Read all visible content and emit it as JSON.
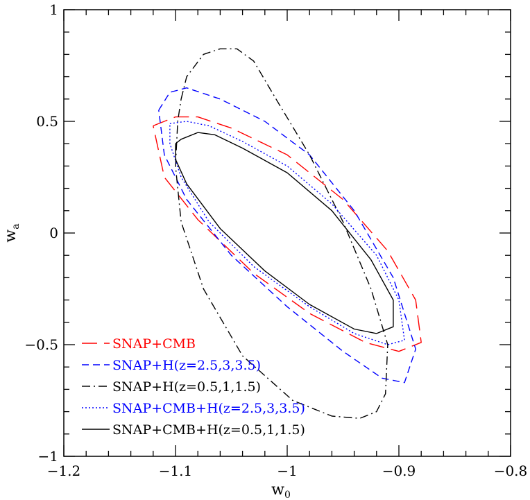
{
  "chart_data": {
    "type": "line",
    "title": "",
    "xlabel": "w",
    "xlabel_sub": "0",
    "ylabel": "w",
    "ylabel_sub": "a",
    "xlim": [
      -1.2,
      -0.8
    ],
    "ylim": [
      -1,
      1
    ],
    "x_major_ticks": [
      -1.2,
      -1.1,
      -1.0,
      -0.9,
      -0.8
    ],
    "x_tick_labels": [
      "−1.2",
      "−1.1",
      "−1",
      "−0.9",
      "−0.8"
    ],
    "y_major_ticks": [
      -1,
      -0.5,
      0,
      0.5,
      1
    ],
    "y_tick_labels": [
      "−1",
      "−0.5",
      "0",
      "0.5",
      "1"
    ],
    "x_minor_step": 0.02,
    "y_minor_step": 0.1,
    "grid": false,
    "legend_position": "bottom-left",
    "series": [
      {
        "name": "SNAP+CMB",
        "color": "#ff0000",
        "dash": "long-dash",
        "points": [
          [
            -1.12,
            0.48
          ],
          [
            -1.1,
            0.52
          ],
          [
            -1.08,
            0.52
          ],
          [
            -1.05,
            0.47
          ],
          [
            -1.0,
            0.35
          ],
          [
            -0.95,
            0.15
          ],
          [
            -0.91,
            -0.08
          ],
          [
            -0.885,
            -0.3
          ],
          [
            -0.88,
            -0.49
          ],
          [
            -0.9,
            -0.53
          ],
          [
            -0.93,
            -0.49
          ],
          [
            -0.98,
            -0.36
          ],
          [
            -1.03,
            -0.18
          ],
          [
            -1.08,
            0.06
          ],
          [
            -1.11,
            0.25
          ],
          [
            -1.12,
            0.48
          ]
        ]
      },
      {
        "name": "SNAP+H(z=2.5,3,3.5)",
        "color": "#0000ff",
        "dash": "short-dash",
        "points": [
          [
            -1.115,
            0.55
          ],
          [
            -1.105,
            0.63
          ],
          [
            -1.09,
            0.65
          ],
          [
            -1.06,
            0.6
          ],
          [
            -1.02,
            0.5
          ],
          [
            -0.98,
            0.35
          ],
          [
            -0.94,
            0.1
          ],
          [
            -0.905,
            -0.2
          ],
          [
            -0.885,
            -0.52
          ],
          [
            -0.895,
            -0.67
          ],
          [
            -0.915,
            -0.65
          ],
          [
            -0.95,
            -0.53
          ],
          [
            -1.0,
            -0.33
          ],
          [
            -1.05,
            -0.1
          ],
          [
            -1.09,
            0.15
          ],
          [
            -1.11,
            0.35
          ],
          [
            -1.115,
            0.55
          ]
        ]
      },
      {
        "name": "SNAP+H(z=0.5,1,1.5)",
        "color": "#000000",
        "dash": "dash-dot",
        "points": [
          [
            -1.095,
            0.6
          ],
          [
            -1.09,
            0.7
          ],
          [
            -1.075,
            0.8
          ],
          [
            -1.06,
            0.825
          ],
          [
            -1.045,
            0.825
          ],
          [
            -1.03,
            0.77
          ],
          [
            -1.01,
            0.6
          ],
          [
            -0.98,
            0.35
          ],
          [
            -0.95,
            0.05
          ],
          [
            -0.925,
            -0.25
          ],
          [
            -0.91,
            -0.5
          ],
          [
            -0.912,
            -0.72
          ],
          [
            -0.92,
            -0.8
          ],
          [
            -0.935,
            -0.83
          ],
          [
            -0.96,
            -0.82
          ],
          [
            -0.995,
            -0.75
          ],
          [
            -1.04,
            -0.55
          ],
          [
            -1.075,
            -0.25
          ],
          [
            -1.095,
            0.05
          ],
          [
            -1.1,
            0.3
          ],
          [
            -1.098,
            0.5
          ],
          [
            -1.095,
            0.6
          ]
        ]
      },
      {
        "name": "SNAP+CMB+H(z=2.5,3,3.5)",
        "color": "#0000ff",
        "dash": "dotted",
        "points": [
          [
            -1.105,
            0.49
          ],
          [
            -1.09,
            0.5
          ],
          [
            -1.07,
            0.48
          ],
          [
            -1.04,
            0.41
          ],
          [
            -1.0,
            0.3
          ],
          [
            -0.96,
            0.13
          ],
          [
            -0.92,
            -0.1
          ],
          [
            -0.9,
            -0.3
          ],
          [
            -0.895,
            -0.48
          ],
          [
            -0.91,
            -0.5
          ],
          [
            -0.94,
            -0.45
          ],
          [
            -0.98,
            -0.33
          ],
          [
            -1.03,
            -0.15
          ],
          [
            -1.07,
            0.05
          ],
          [
            -1.095,
            0.25
          ],
          [
            -1.105,
            0.4
          ],
          [
            -1.105,
            0.49
          ]
        ]
      },
      {
        "name": "SNAP+CMB+H(z=0.5,1,1.5)",
        "color": "#000000",
        "dash": "solid",
        "points": [
          [
            -1.1,
            0.4
          ],
          [
            -1.095,
            0.42
          ],
          [
            -1.08,
            0.45
          ],
          [
            -1.065,
            0.44
          ],
          [
            -1.04,
            0.38
          ],
          [
            -1.0,
            0.27
          ],
          [
            -0.96,
            0.1
          ],
          [
            -0.925,
            -0.12
          ],
          [
            -0.905,
            -0.3
          ],
          [
            -0.905,
            -0.42
          ],
          [
            -0.92,
            -0.45
          ],
          [
            -0.94,
            -0.43
          ],
          [
            -0.98,
            -0.32
          ],
          [
            -1.02,
            -0.17
          ],
          [
            -1.06,
            0.02
          ],
          [
            -1.09,
            0.22
          ],
          [
            -1.1,
            0.33
          ],
          [
            -1.1,
            0.4
          ]
        ]
      }
    ]
  }
}
